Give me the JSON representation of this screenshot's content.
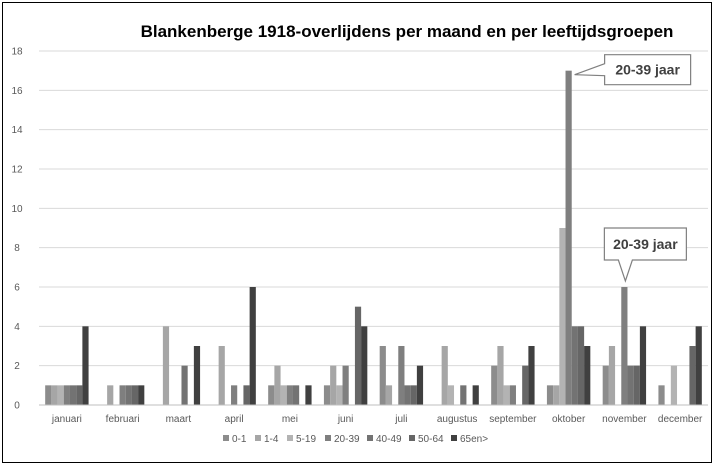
{
  "chart_data": {
    "type": "bar",
    "title": "Blankenberge 1918-overlijdens per maand en per leeftijdsgroepen",
    "xlabel": "",
    "ylabel": "",
    "ylim": [
      0,
      18
    ],
    "yticks": [
      0,
      2,
      4,
      6,
      8,
      10,
      12,
      14,
      16,
      18
    ],
    "grid": true,
    "legend_position": "bottom",
    "categories": [
      "januari",
      "februari",
      "maart",
      "april",
      "mei",
      "juni",
      "juli",
      "augustus",
      "september",
      "oktober",
      "november",
      "december"
    ],
    "series": [
      {
        "name": "0-1",
        "color": "#8c8c8c",
        "values": [
          1,
          0,
          0,
          0,
          1,
          1,
          3,
          0,
          2,
          1,
          2,
          1
        ]
      },
      {
        "name": "1-4",
        "color": "#a6a6a6",
        "values": [
          1,
          1,
          4,
          3,
          2,
          2,
          1,
          3,
          3,
          1,
          3,
          0
        ]
      },
      {
        "name": "5-19",
        "color": "#b3b3b3",
        "values": [
          1,
          0,
          0,
          0,
          1,
          1,
          0,
          1,
          1,
          9,
          0,
          2
        ]
      },
      {
        "name": "20-39",
        "color": "#7f7f7f",
        "values": [
          1,
          1,
          0,
          1,
          1,
          2,
          3,
          0,
          1,
          17,
          6,
          0
        ]
      },
      {
        "name": "40-49",
        "color": "#737373",
        "values": [
          1,
          1,
          2,
          0,
          1,
          0,
          1,
          1,
          0,
          4,
          2,
          0
        ]
      },
      {
        "name": "50-64",
        "color": "#666666",
        "values": [
          1,
          1,
          0,
          1,
          0,
          5,
          1,
          0,
          2,
          4,
          2,
          3
        ]
      },
      {
        "name": "65en>",
        "color": "#404040",
        "values": [
          4,
          1,
          3,
          6,
          1,
          4,
          2,
          1,
          3,
          3,
          4,
          4
        ]
      }
    ],
    "annotations": [
      {
        "text": "20-39 jaar",
        "category": "oktober",
        "series": "20-39",
        "value": 17
      },
      {
        "text": "20-39 jaar",
        "category": "november",
        "series": "20-39",
        "value": 6
      }
    ]
  }
}
